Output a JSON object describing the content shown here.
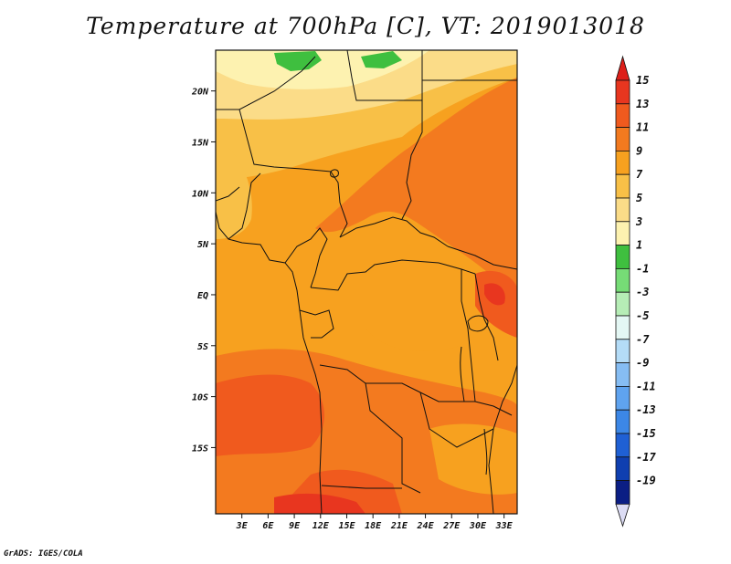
{
  "title": "Temperature at 700hPa [C], VT: 2019013018",
  "credit": "GrADS: IGES/COLA",
  "map": {
    "lon_range": [
      0,
      34.5
    ],
    "lat_range": [
      -21.5,
      24
    ],
    "lat_ticks": [
      {
        "lat": 20,
        "label": "20N"
      },
      {
        "lat": 15,
        "label": "15N"
      },
      {
        "lat": 10,
        "label": "10N"
      },
      {
        "lat": 5,
        "label": "5N"
      },
      {
        "lat": 0,
        "label": "EQ"
      },
      {
        "lat": -5,
        "label": "5S"
      },
      {
        "lat": -10,
        "label": "10S"
      },
      {
        "lat": -15,
        "label": "15S"
      }
    ],
    "lon_ticks": [
      {
        "lon": 3,
        "label": "3E"
      },
      {
        "lon": 6,
        "label": "6E"
      },
      {
        "lon": 9,
        "label": "9E"
      },
      {
        "lon": 12,
        "label": "12E"
      },
      {
        "lon": 15,
        "label": "15E"
      },
      {
        "lon": 18,
        "label": "18E"
      },
      {
        "lon": 21,
        "label": "21E"
      },
      {
        "lon": 24,
        "label": "24E"
      },
      {
        "lon": 27,
        "label": "27E"
      },
      {
        "lon": 30,
        "label": "30E"
      },
      {
        "lon": 33,
        "label": "33E"
      }
    ]
  },
  "colorbar": {
    "levels": [
      {
        "label": "15",
        "color": "#e8361f"
      },
      {
        "label": "13",
        "color": "#f05a1e"
      },
      {
        "label": "11",
        "color": "#f37a1f"
      },
      {
        "label": "9",
        "color": "#f7a11f"
      },
      {
        "label": "7",
        "color": "#f8c047"
      },
      {
        "label": "5",
        "color": "#fbdc88"
      },
      {
        "label": "3",
        "color": "#fdf2b0"
      },
      {
        "label": "1",
        "color": "#3fbf3f"
      },
      {
        "label": "-1",
        "color": "#76dc76"
      },
      {
        "label": "-3",
        "color": "#b6edb6"
      },
      {
        "label": "-5",
        "color": "#e4f7f4"
      },
      {
        "label": "-7",
        "color": "#b4dcf7"
      },
      {
        "label": "-9",
        "color": "#86bdf3"
      },
      {
        "label": "-11",
        "color": "#5fa3ef"
      },
      {
        "label": "-13",
        "color": "#3c87e6"
      },
      {
        "label": "-15",
        "color": "#1f60d4"
      },
      {
        "label": "-17",
        "color": "#0f3fb0"
      },
      {
        "label": "-19",
        "color": "#0b1e84"
      }
    ],
    "top_color": "#dd1f1a",
    "bottom_color": "#dcdcf4"
  }
}
